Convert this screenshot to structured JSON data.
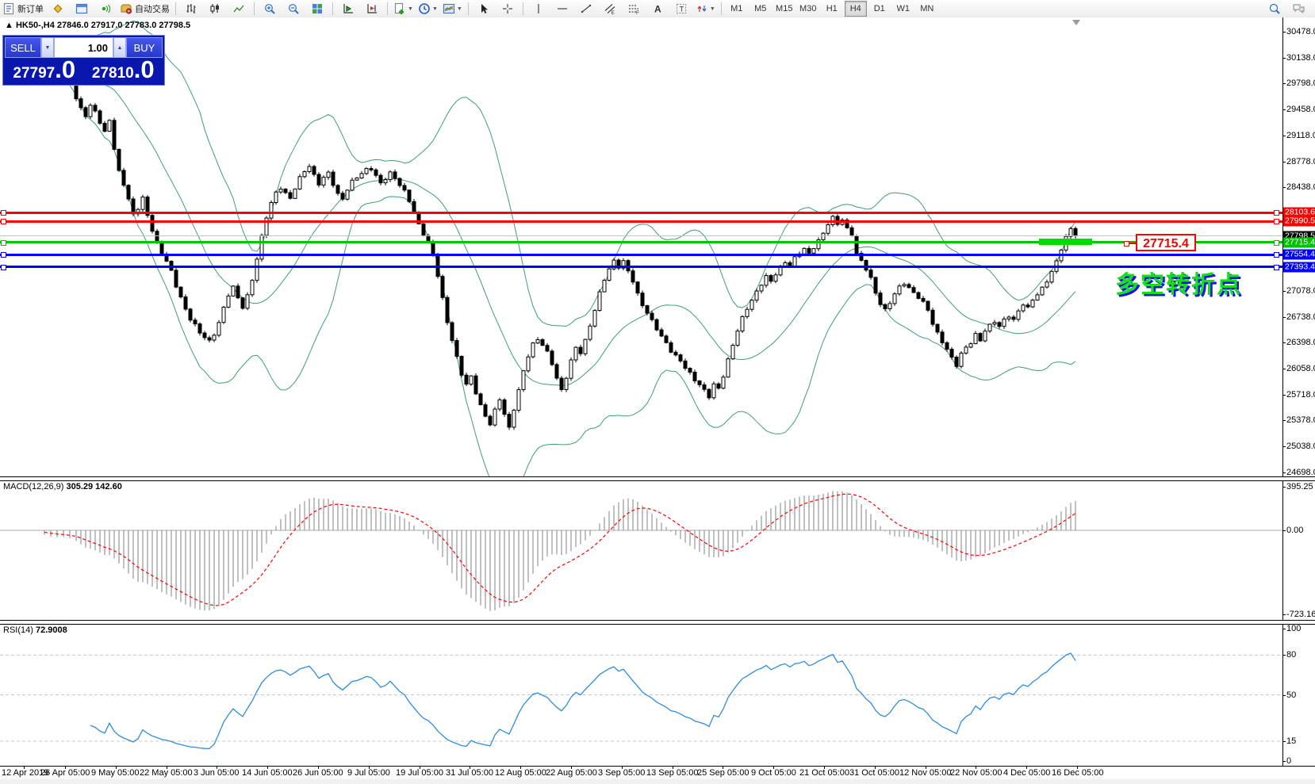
{
  "toolbar": {
    "groups": [
      {
        "name": "orders",
        "items": [
          {
            "icon": "new-order",
            "label": "新订单",
            "name": "new-order-button"
          },
          {
            "icon": "diamond",
            "name": "market-watch-button"
          },
          {
            "icon": "profiles",
            "name": "profiles-button"
          },
          {
            "icon": "signal",
            "name": "signals-button"
          },
          {
            "icon": "autotrade",
            "label": "自动交易",
            "name": "autotrading-button"
          }
        ]
      },
      {
        "name": "chart-type",
        "items": [
          {
            "icon": "bars",
            "name": "bar-chart-button"
          },
          {
            "icon": "candles",
            "name": "candlestick-chart-button"
          },
          {
            "icon": "line",
            "name": "line-chart-button"
          }
        ]
      },
      {
        "name": "zoom",
        "items": [
          {
            "icon": "zoom-in",
            "name": "zoom-in-button"
          },
          {
            "icon": "zoom-out",
            "name": "zoom-out-button"
          },
          {
            "icon": "tiles",
            "name": "tile-windows-button"
          }
        ]
      },
      {
        "name": "scroll",
        "items": [
          {
            "icon": "autoscroll",
            "name": "auto-scroll-button"
          },
          {
            "icon": "shift",
            "name": "chart-shift-button"
          }
        ]
      },
      {
        "name": "objects",
        "items": [
          {
            "icon": "new-chart",
            "caret": true,
            "name": "new-chart-button"
          },
          {
            "icon": "clock",
            "caret": true,
            "name": "periods-button"
          },
          {
            "icon": "template",
            "caret": true,
            "name": "templates-button"
          }
        ]
      },
      {
        "name": "cursor",
        "items": [
          {
            "icon": "cursor",
            "name": "cursor-tool-button"
          },
          {
            "icon": "crosshair",
            "name": "crosshair-tool-button"
          }
        ]
      },
      {
        "name": "draw",
        "items": [
          {
            "icon": "vline",
            "name": "vertical-line-tool"
          },
          {
            "icon": "hline",
            "name": "horizontal-line-tool"
          },
          {
            "icon": "trendline",
            "name": "trendline-tool"
          },
          {
            "icon": "channel",
            "name": "channel-tool"
          },
          {
            "icon": "fibo",
            "name": "fibonacci-tool"
          },
          {
            "icon": "text-a",
            "name": "text-tool"
          },
          {
            "icon": "label-t",
            "name": "text-label-tool"
          },
          {
            "icon": "arrows",
            "caret": true,
            "name": "arrows-tool"
          }
        ]
      }
    ],
    "timeframes": {
      "items": [
        "M1",
        "M5",
        "M15",
        "M30",
        "H1",
        "H4",
        "D1",
        "W1",
        "MN"
      ],
      "active": "H4"
    },
    "right_icons": [
      {
        "icon": "search",
        "name": "search-button"
      },
      {
        "icon": "chat",
        "name": "chat-button"
      }
    ]
  },
  "chart": {
    "marker": "▲",
    "title": "HK50-,H4",
    "ohlc_text": "27846.0 27917.0 27783.0 27798.5",
    "trade_panel": {
      "sell": "SELL",
      "buy": "BUY",
      "volume": "1.00",
      "sell_base": "27797",
      "sell_pip": ".0",
      "buy_base": "27810",
      "buy_pip": ".0"
    },
    "annotation": "多空转折点",
    "callout": "27715.4",
    "y_ticks": [
      "30478.0",
      "30138.0",
      "29798.0",
      "29458.0",
      "29118.0",
      "28778.0",
      "28438.0",
      "27078.0",
      "26738.0",
      "26398.0",
      "26058.0",
      "25718.0",
      "25378.0",
      "25038.0",
      "24698.0"
    ]
  },
  "macd": {
    "title": "MACD(12,26,9)",
    "values": "305.29 142.60",
    "ticks": [
      "395.25",
      "0.00",
      "-723.16"
    ]
  },
  "rsi": {
    "title": "RSI(14)",
    "value": "72.9008",
    "ticks": [
      "100",
      "80",
      "50",
      "15",
      "0"
    ],
    "levels": [
      80,
      50,
      15
    ]
  },
  "x_axis": {
    "labels": [
      "12 Apr 2019",
      "26 Apr 05:00",
      "9 May 05:00",
      "22 May 05:00",
      "3 Jun 05:00",
      "14 Jun 05:00",
      "26 Jun 05:00",
      "9 Jul 05:00",
      "19 Jul 05:00",
      "31 Jul 05:00",
      "12 Aug 05:00",
      "22 Aug 05:00",
      "3 Sep 05:00",
      "13 Sep 05:00",
      "25 Sep 05:00",
      "9 Oct 05:00",
      "21 Oct 05:00",
      "31 Oct 05:00",
      "12 Nov 05:00",
      "22 Nov 05:00",
      "4 Dec 05:00",
      "16 Dec 05:00"
    ]
  },
  "chart_data": {
    "type": "candlestick",
    "symbol": "HK50-",
    "timeframe": "H4",
    "last_ohlc": {
      "open": 27846.0,
      "high": 27917.0,
      "low": 27783.0,
      "close": 27798.5
    },
    "bid": 27797.0,
    "ask": 27810.0,
    "y_axis_range": [
      24698.0,
      30478.0
    ],
    "levels": [
      {
        "label": "28103.6",
        "value": 28103.6,
        "color": "#ff0000",
        "thickness": 3,
        "handles": true
      },
      {
        "label": "27990.5",
        "value": 27990.5,
        "color": "#ff0000",
        "thickness": 3,
        "handles": true
      },
      {
        "label": "27798.5",
        "value": 27798.5,
        "color": "#000000",
        "line_color": "#c4c4c4",
        "thickness": 1,
        "handles": false
      },
      {
        "label": "27715.4",
        "value": 27715.4,
        "color": "#00c300",
        "thickness": 3,
        "handles": true
      },
      {
        "label": "27554.4",
        "value": 27554.4,
        "color": "#0000ff",
        "thickness": 3,
        "handles": true
      },
      {
        "label": "27393.4",
        "value": 27393.4,
        "color": "#0000ff",
        "thickness": 3,
        "handles": true
      }
    ],
    "bollinger": {
      "period": 20,
      "deviation": 2.15
    },
    "macd": {
      "fast": 12,
      "slow": 26,
      "signal": 9,
      "current_main": 305.29,
      "current_signal": 142.6
    },
    "rsi": {
      "period": 14,
      "current": 72.9008
    },
    "price_path": [
      [
        8,
        30180
      ],
      [
        16,
        30120
      ],
      [
        24,
        30160
      ],
      [
        32,
        30050
      ],
      [
        40,
        29990
      ],
      [
        48,
        30070
      ],
      [
        56,
        29950
      ],
      [
        64,
        29850
      ],
      [
        72,
        29940
      ],
      [
        80,
        29990
      ],
      [
        88,
        29850
      ],
      [
        96,
        29600
      ],
      [
        102,
        29480
      ],
      [
        108,
        29390
      ],
      [
        114,
        29500
      ],
      [
        120,
        29430
      ],
      [
        126,
        29280
      ],
      [
        132,
        29150
      ],
      [
        138,
        29330
      ],
      [
        144,
        28950
      ],
      [
        150,
        28650
      ],
      [
        156,
        28480
      ],
      [
        162,
        28270
      ],
      [
        168,
        28070
      ],
      [
        174,
        28160
      ],
      [
        180,
        28300
      ],
      [
        186,
        28080
      ],
      [
        192,
        27880
      ],
      [
        198,
        27700
      ],
      [
        204,
        27560
      ],
      [
        210,
        27460
      ],
      [
        216,
        27330
      ],
      [
        222,
        27150
      ],
      [
        228,
        27000
      ],
      [
        234,
        26840
      ],
      [
        240,
        26710
      ],
      [
        246,
        26620
      ],
      [
        252,
        26520
      ],
      [
        258,
        26470
      ],
      [
        264,
        26420
      ],
      [
        270,
        26520
      ],
      [
        276,
        26670
      ],
      [
        282,
        26850
      ],
      [
        288,
        27020
      ],
      [
        294,
        27120
      ],
      [
        300,
        26980
      ],
      [
        306,
        26870
      ],
      [
        312,
        27020
      ],
      [
        318,
        27230
      ],
      [
        324,
        27500
      ],
      [
        330,
        27780
      ],
      [
        336,
        28040
      ],
      [
        342,
        28230
      ],
      [
        348,
        28370
      ],
      [
        354,
        28440
      ],
      [
        360,
        28360
      ],
      [
        366,
        28290
      ],
      [
        372,
        28420
      ],
      [
        378,
        28550
      ],
      [
        384,
        28650
      ],
      [
        390,
        28720
      ],
      [
        396,
        28600
      ],
      [
        402,
        28490
      ],
      [
        408,
        28560
      ],
      [
        414,
        28620
      ],
      [
        420,
        28470
      ],
      [
        426,
        28340
      ],
      [
        432,
        28290
      ],
      [
        438,
        28420
      ],
      [
        444,
        28520
      ],
      [
        450,
        28570
      ],
      [
        456,
        28610
      ],
      [
        462,
        28660
      ],
      [
        468,
        28680
      ],
      [
        474,
        28590
      ],
      [
        480,
        28500
      ],
      [
        486,
        28560
      ],
      [
        492,
        28620
      ],
      [
        498,
        28550
      ],
      [
        504,
        28460
      ],
      [
        510,
        28380
      ],
      [
        516,
        28270
      ],
      [
        522,
        28120
      ],
      [
        528,
        27950
      ],
      [
        534,
        27820
      ],
      [
        540,
        27700
      ],
      [
        546,
        27540
      ],
      [
        552,
        27280
      ],
      [
        558,
        26980
      ],
      [
        564,
        26680
      ],
      [
        570,
        26440
      ],
      [
        576,
        26200
      ],
      [
        582,
        25980
      ],
      [
        588,
        25840
      ],
      [
        594,
        25950
      ],
      [
        600,
        25750
      ],
      [
        606,
        25580
      ],
      [
        612,
        25440
      ],
      [
        618,
        25330
      ],
      [
        624,
        25500
      ],
      [
        630,
        25650
      ],
      [
        636,
        25460
      ],
      [
        642,
        25280
      ],
      [
        648,
        25540
      ],
      [
        654,
        25780
      ],
      [
        660,
        26020
      ],
      [
        666,
        26220
      ],
      [
        672,
        26370
      ],
      [
        678,
        26440
      ],
      [
        684,
        26380
      ],
      [
        690,
        26280
      ],
      [
        696,
        26130
      ],
      [
        702,
        25930
      ],
      [
        708,
        25760
      ],
      [
        714,
        25940
      ],
      [
        720,
        26160
      ],
      [
        726,
        26340
      ],
      [
        732,
        26280
      ],
      [
        738,
        26430
      ],
      [
        744,
        26620
      ],
      [
        750,
        26820
      ],
      [
        756,
        27040
      ],
      [
        762,
        27230
      ],
      [
        768,
        27370
      ],
      [
        774,
        27480
      ],
      [
        780,
        27400
      ],
      [
        786,
        27460
      ],
      [
        792,
        27330
      ],
      [
        798,
        27200
      ],
      [
        804,
        27030
      ],
      [
        810,
        26900
      ],
      [
        816,
        26800
      ],
      [
        822,
        26690
      ],
      [
        828,
        26580
      ],
      [
        834,
        26470
      ],
      [
        840,
        26380
      ],
      [
        846,
        26290
      ],
      [
        852,
        26230
      ],
      [
        858,
        26170
      ],
      [
        864,
        26080
      ],
      [
        870,
        25990
      ],
      [
        876,
        25900
      ],
      [
        882,
        25840
      ],
      [
        888,
        25770
      ],
      [
        894,
        25700
      ],
      [
        900,
        25860
      ],
      [
        906,
        25800
      ],
      [
        912,
        25960
      ],
      [
        918,
        26160
      ],
      [
        924,
        26360
      ],
      [
        930,
        26560
      ],
      [
        936,
        26730
      ],
      [
        942,
        26860
      ],
      [
        948,
        26960
      ],
      [
        954,
        27060
      ],
      [
        960,
        27160
      ],
      [
        966,
        27260
      ],
      [
        972,
        27200
      ],
      [
        978,
        27310
      ],
      [
        984,
        27390
      ],
      [
        990,
        27460
      ],
      [
        996,
        27400
      ],
      [
        1002,
        27500
      ],
      [
        1008,
        27570
      ],
      [
        1014,
        27630
      ],
      [
        1020,
        27570
      ],
      [
        1026,
        27660
      ],
      [
        1032,
        27740
      ],
      [
        1038,
        27830
      ],
      [
        1044,
        27950
      ],
      [
        1050,
        28030
      ],
      [
        1056,
        27960
      ],
      [
        1062,
        28020
      ],
      [
        1068,
        27900
      ],
      [
        1074,
        27820
      ],
      [
        1080,
        27560
      ],
      [
        1086,
        27460
      ],
      [
        1092,
        27360
      ],
      [
        1098,
        27240
      ],
      [
        1104,
        27060
      ],
      [
        1110,
        26920
      ],
      [
        1116,
        26830
      ],
      [
        1122,
        26920
      ],
      [
        1128,
        27030
      ],
      [
        1134,
        27120
      ],
      [
        1140,
        27180
      ],
      [
        1146,
        27120
      ],
      [
        1152,
        27060
      ],
      [
        1158,
        27000
      ],
      [
        1164,
        26920
      ],
      [
        1170,
        26820
      ],
      [
        1176,
        26640
      ],
      [
        1182,
        26520
      ],
      [
        1188,
        26420
      ],
      [
        1194,
        26320
      ],
      [
        1200,
        26200
      ],
      [
        1206,
        26100
      ],
      [
        1212,
        26240
      ],
      [
        1218,
        26330
      ],
      [
        1224,
        26400
      ],
      [
        1230,
        26510
      ],
      [
        1236,
        26440
      ],
      [
        1242,
        26560
      ],
      [
        1248,
        26620
      ],
      [
        1254,
        26670
      ],
      [
        1260,
        26600
      ],
      [
        1266,
        26700
      ],
      [
        1272,
        26760
      ],
      [
        1278,
        26700
      ],
      [
        1284,
        26820
      ],
      [
        1290,
        26900
      ],
      [
        1296,
        26840
      ],
      [
        1302,
        26960
      ],
      [
        1308,
        27030
      ],
      [
        1314,
        27120
      ],
      [
        1320,
        27220
      ],
      [
        1326,
        27330
      ],
      [
        1332,
        27460
      ],
      [
        1338,
        27620
      ],
      [
        1344,
        27770
      ],
      [
        1350,
        27900
      ],
      [
        1356,
        27798.5
      ]
    ]
  }
}
